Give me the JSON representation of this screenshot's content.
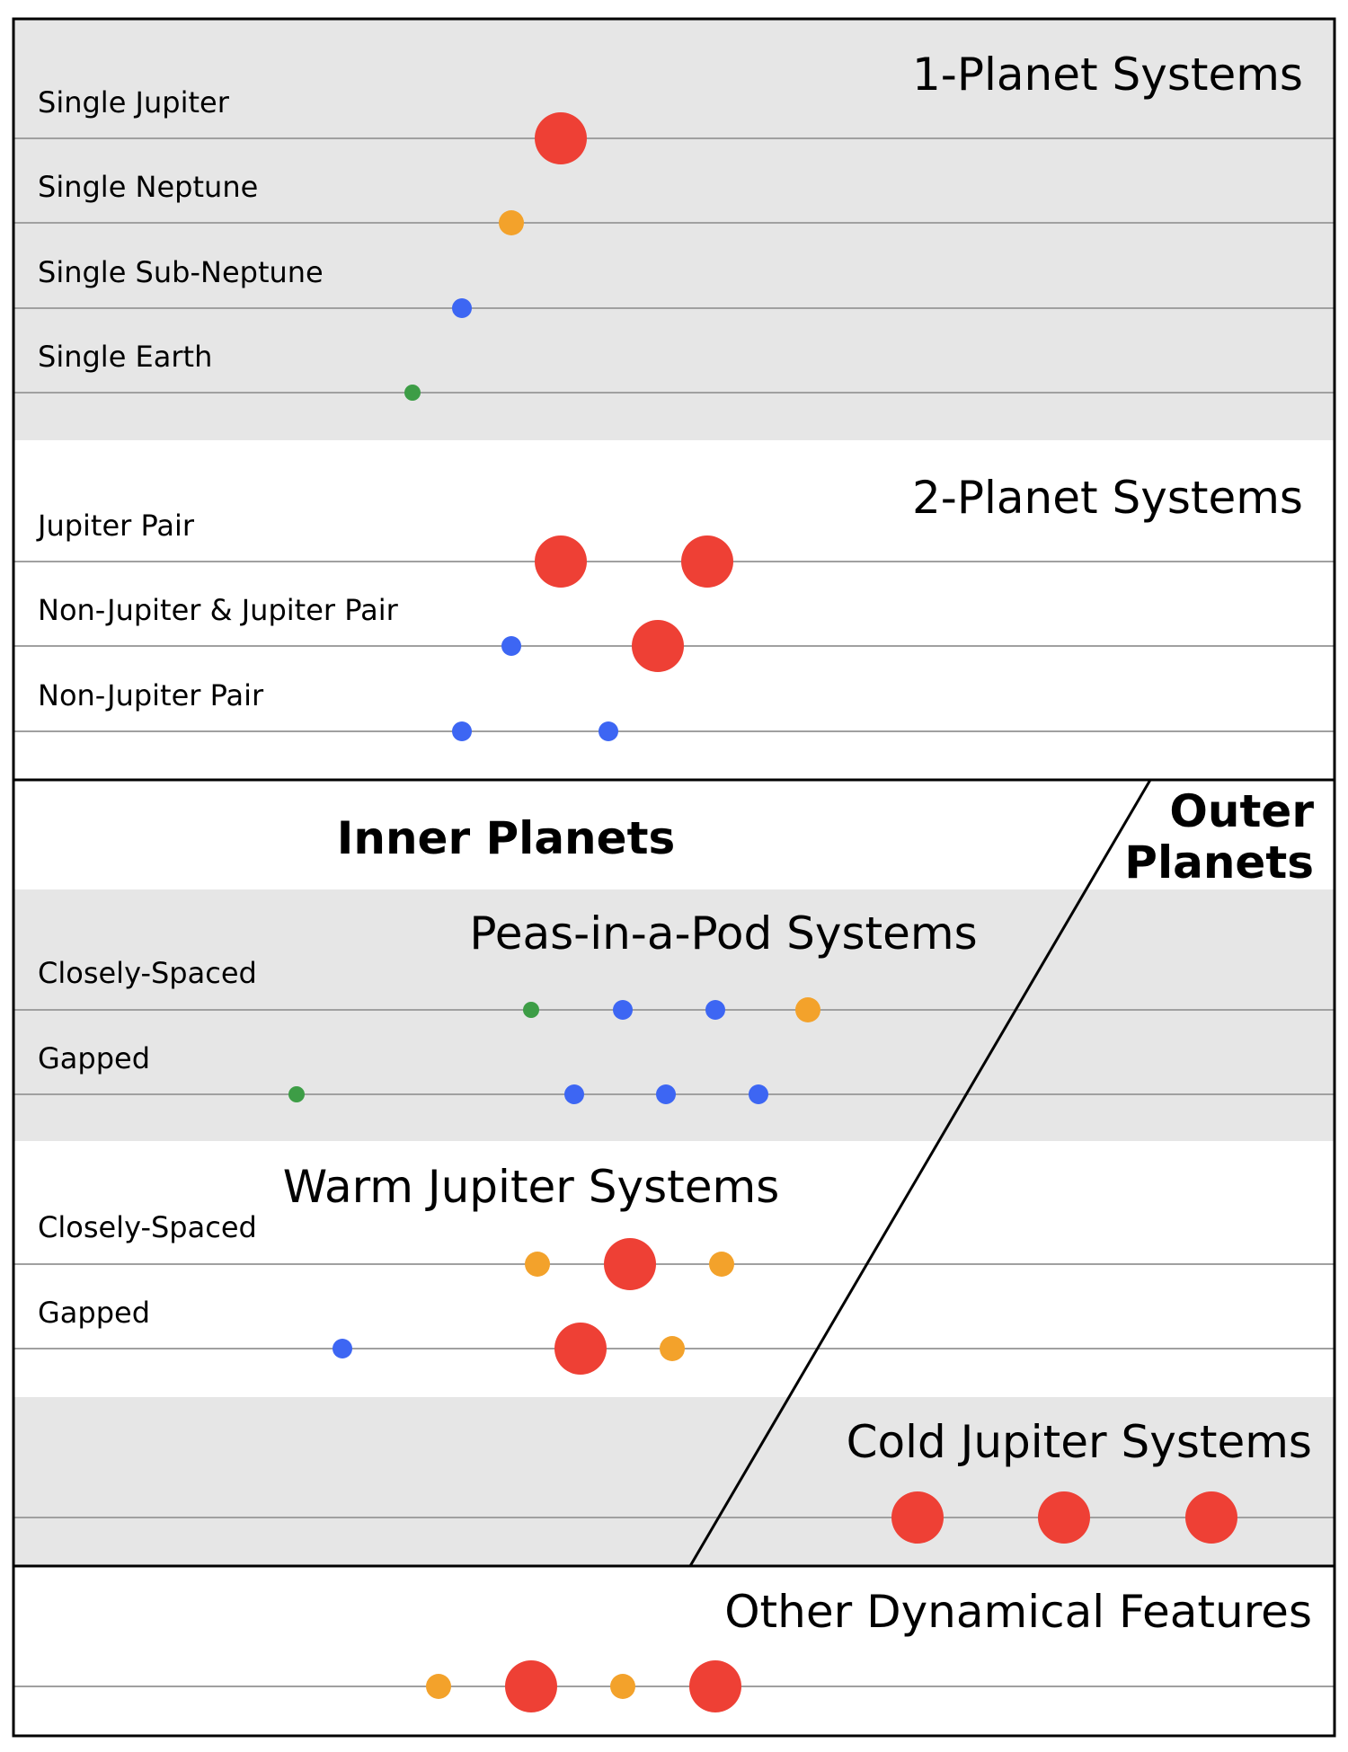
{
  "colors": {
    "jupiter": "#ee4035",
    "neptune": "#f3a22b",
    "sub_neptune": "#3d66f3",
    "earth": "#3d9d46",
    "band_gray": "#e6e6e6",
    "rule": "#a0a0a0"
  },
  "sections": {
    "one_planet": {
      "title": "1-Planet Systems",
      "rows": [
        {
          "label": "Single Jupiter",
          "planets": [
            "jupiter"
          ]
        },
        {
          "label": "Single Neptune",
          "planets": [
            "neptune"
          ]
        },
        {
          "label": "Single Sub-Neptune",
          "planets": [
            "sub_neptune"
          ]
        },
        {
          "label": "Single Earth",
          "planets": [
            "earth"
          ]
        }
      ]
    },
    "two_planet": {
      "title": "2-Planet Systems",
      "rows": [
        {
          "label": "Jupiter Pair",
          "planets": [
            "jupiter",
            "jupiter"
          ]
        },
        {
          "label": "Non-Jupiter & Jupiter Pair",
          "planets": [
            "sub_neptune",
            "jupiter"
          ]
        },
        {
          "label": "Non-Jupiter Pair",
          "planets": [
            "sub_neptune",
            "sub_neptune"
          ]
        }
      ]
    },
    "inner_planets": {
      "title": "Inner Planets"
    },
    "outer_planets": {
      "title_line1": "Outer",
      "title_line2": "Planets"
    },
    "peas_in_a_pod": {
      "title": "Peas-in-a-Pod Systems",
      "rows": [
        {
          "label": "Closely-Spaced",
          "planets": [
            "earth",
            "sub_neptune",
            "sub_neptune",
            "neptune"
          ]
        },
        {
          "label": "Gapped",
          "planets": [
            "earth",
            "sub_neptune",
            "sub_neptune",
            "sub_neptune"
          ]
        }
      ]
    },
    "warm_jupiter": {
      "title": "Warm Jupiter Systems",
      "rows": [
        {
          "label": "Closely-Spaced",
          "planets": [
            "neptune",
            "jupiter",
            "neptune"
          ]
        },
        {
          "label": "Gapped",
          "planets": [
            "sub_neptune",
            "jupiter",
            "neptune"
          ]
        }
      ]
    },
    "cold_jupiter": {
      "title": "Cold Jupiter Systems",
      "rows": [
        {
          "label": "",
          "planets": [
            "jupiter",
            "jupiter",
            "jupiter"
          ]
        }
      ]
    },
    "other": {
      "title": "Other Dynamical Features",
      "rows": [
        {
          "label": "",
          "planets": [
            "neptune",
            "jupiter",
            "neptune",
            "jupiter"
          ]
        }
      ]
    }
  }
}
